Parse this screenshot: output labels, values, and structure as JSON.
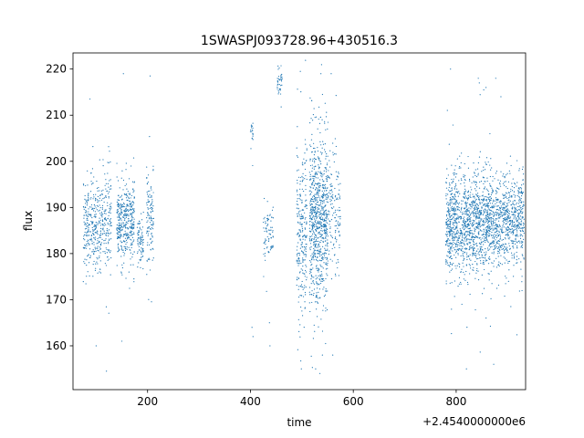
{
  "chart_data": {
    "type": "scatter",
    "title": "1SWASPJ093728.96+430516.3",
    "xlabel": "time",
    "ylabel": "flux",
    "x_offset_label": "+2.4540000000e6",
    "xlim": [
      55,
      935
    ],
    "ylim": [
      150.5,
      223.5
    ],
    "x_ticks": [
      200,
      400,
      600,
      800
    ],
    "y_ticks": [
      160,
      170,
      180,
      190,
      200,
      210,
      220
    ],
    "grid": false,
    "legend": "none",
    "marker_color": "#1f77b4",
    "clusters": [
      {
        "x_range": [
          75,
          110
        ],
        "y_mean": 186,
        "y_sd": 4.5,
        "n": 300
      },
      {
        "x_range": [
          110,
          130
        ],
        "y_mean": 187,
        "y_sd": 5,
        "n": 150
      },
      {
        "x_range": [
          140,
          175
        ],
        "y_mean": 187,
        "y_sd": 4.5,
        "n": 400
      },
      {
        "x_range": [
          180,
          192
        ],
        "y_mean": 183,
        "y_sd": 2.5,
        "n": 80
      },
      {
        "x_range": [
          198,
          212
        ],
        "y_mean": 187,
        "y_sd": 5,
        "n": 120
      },
      {
        "x_range": [
          400,
          405
        ],
        "y_mean": 206,
        "y_sd": 1.5,
        "n": 20
      },
      {
        "x_range": [
          425,
          445
        ],
        "y_mean": 185,
        "y_sd": 3,
        "n": 80
      },
      {
        "x_range": [
          452,
          462
        ],
        "y_mean": 217,
        "y_sd": 2,
        "n": 40
      },
      {
        "x_range": [
          490,
          510
        ],
        "y_mean": 185,
        "y_sd": 9,
        "n": 250
      },
      {
        "x_range": [
          515,
          550
        ],
        "y_mean": 187,
        "y_sd": 9,
        "n": 800
      },
      {
        "x_range": [
          550,
          575
        ],
        "y_mean": 190,
        "y_sd": 6,
        "n": 150
      },
      {
        "x_range": [
          780,
          815
        ],
        "y_mean": 186,
        "y_sd": 5.5,
        "n": 500
      },
      {
        "x_range": [
          815,
          870
        ],
        "y_mean": 187,
        "y_sd": 5,
        "n": 800
      },
      {
        "x_range": [
          870,
          932
        ],
        "y_mean": 187,
        "y_sd": 4.5,
        "n": 700
      }
    ],
    "outliers": [
      [
        88,
        213.5
      ],
      [
        120,
        154.5
      ],
      [
        153,
        219
      ],
      [
        205,
        218.5
      ],
      [
        150,
        161
      ],
      [
        100,
        160
      ],
      [
        403,
        164
      ],
      [
        405,
        162
      ],
      [
        438,
        160
      ],
      [
        437,
        165
      ],
      [
        497,
        219.5
      ],
      [
        499,
        155
      ],
      [
        535,
        154
      ],
      [
        537,
        219
      ],
      [
        540,
        158
      ],
      [
        557,
        219
      ],
      [
        560,
        158
      ],
      [
        789,
        220
      ],
      [
        820,
        155
      ],
      [
        843,
        218
      ],
      [
        845,
        217
      ],
      [
        858,
        216
      ],
      [
        873,
        156
      ],
      [
        877,
        218
      ],
      [
        887,
        214
      ]
    ]
  }
}
